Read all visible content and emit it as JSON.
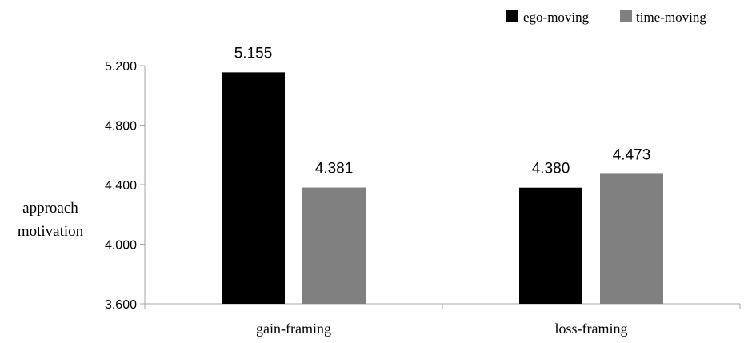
{
  "chart_data": {
    "type": "bar",
    "categories": [
      "gain-framing",
      "loss-framing"
    ],
    "series": [
      {
        "name": "ego-moving",
        "values": [
          5.155,
          4.38
        ],
        "value_labels": [
          "5.155",
          "4.380"
        ],
        "color": "#000000"
      },
      {
        "name": "time-moving",
        "values": [
          4.381,
          4.473
        ],
        "value_labels": [
          "4.381",
          "4.473"
        ],
        "color": "#808080"
      }
    ],
    "ylabel_lines": [
      "approach",
      "motivation"
    ],
    "ylim": [
      3.6,
      5.2
    ],
    "yticks": [
      3.6,
      4.0,
      4.4,
      4.8,
      5.2
    ],
    "ytick_labels": [
      "3.600",
      "4.000",
      "4.400",
      "4.800",
      "5.200"
    ],
    "grid": false,
    "legend_position": "top-right"
  }
}
